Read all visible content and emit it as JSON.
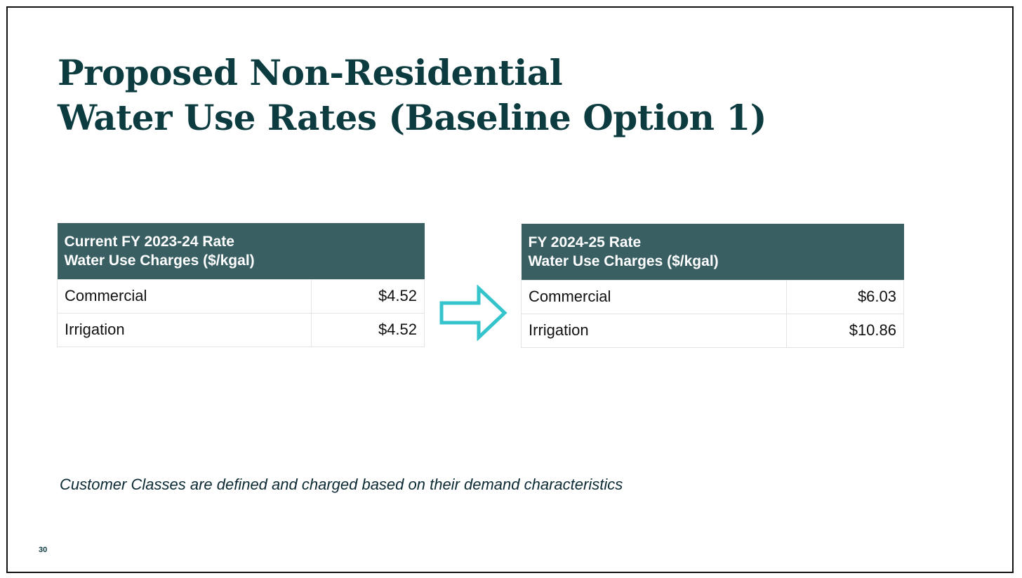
{
  "slide": {
    "title_line1": "Proposed Non-Residential",
    "title_line2": "Water Use Rates (Baseline Option 1)",
    "footnote": "Customer Classes are defined and charged based on their demand characteristics",
    "page_number": "30"
  },
  "current_table": {
    "header_line1": "Current FY 2023-24 Rate",
    "header_line2": "Water Use Charges ($/kgal)",
    "rows": [
      {
        "label": "Commercial",
        "value": "$4.52"
      },
      {
        "label": "Irrigation",
        "value": "$4.52"
      }
    ]
  },
  "proposed_table": {
    "header_line1": "FY 2024-25 Rate",
    "header_line2": "Water Use Charges ($/kgal)",
    "rows": [
      {
        "label": "Commercial",
        "value": "$6.03"
      },
      {
        "label": "Irrigation",
        "value": "$10.86"
      }
    ]
  },
  "colors": {
    "title": "#0c3b40",
    "table_header_bg": "#3a5f63",
    "arrow_outline": "#35c4cc"
  },
  "icons": {
    "arrow": "right-arrow-icon"
  }
}
